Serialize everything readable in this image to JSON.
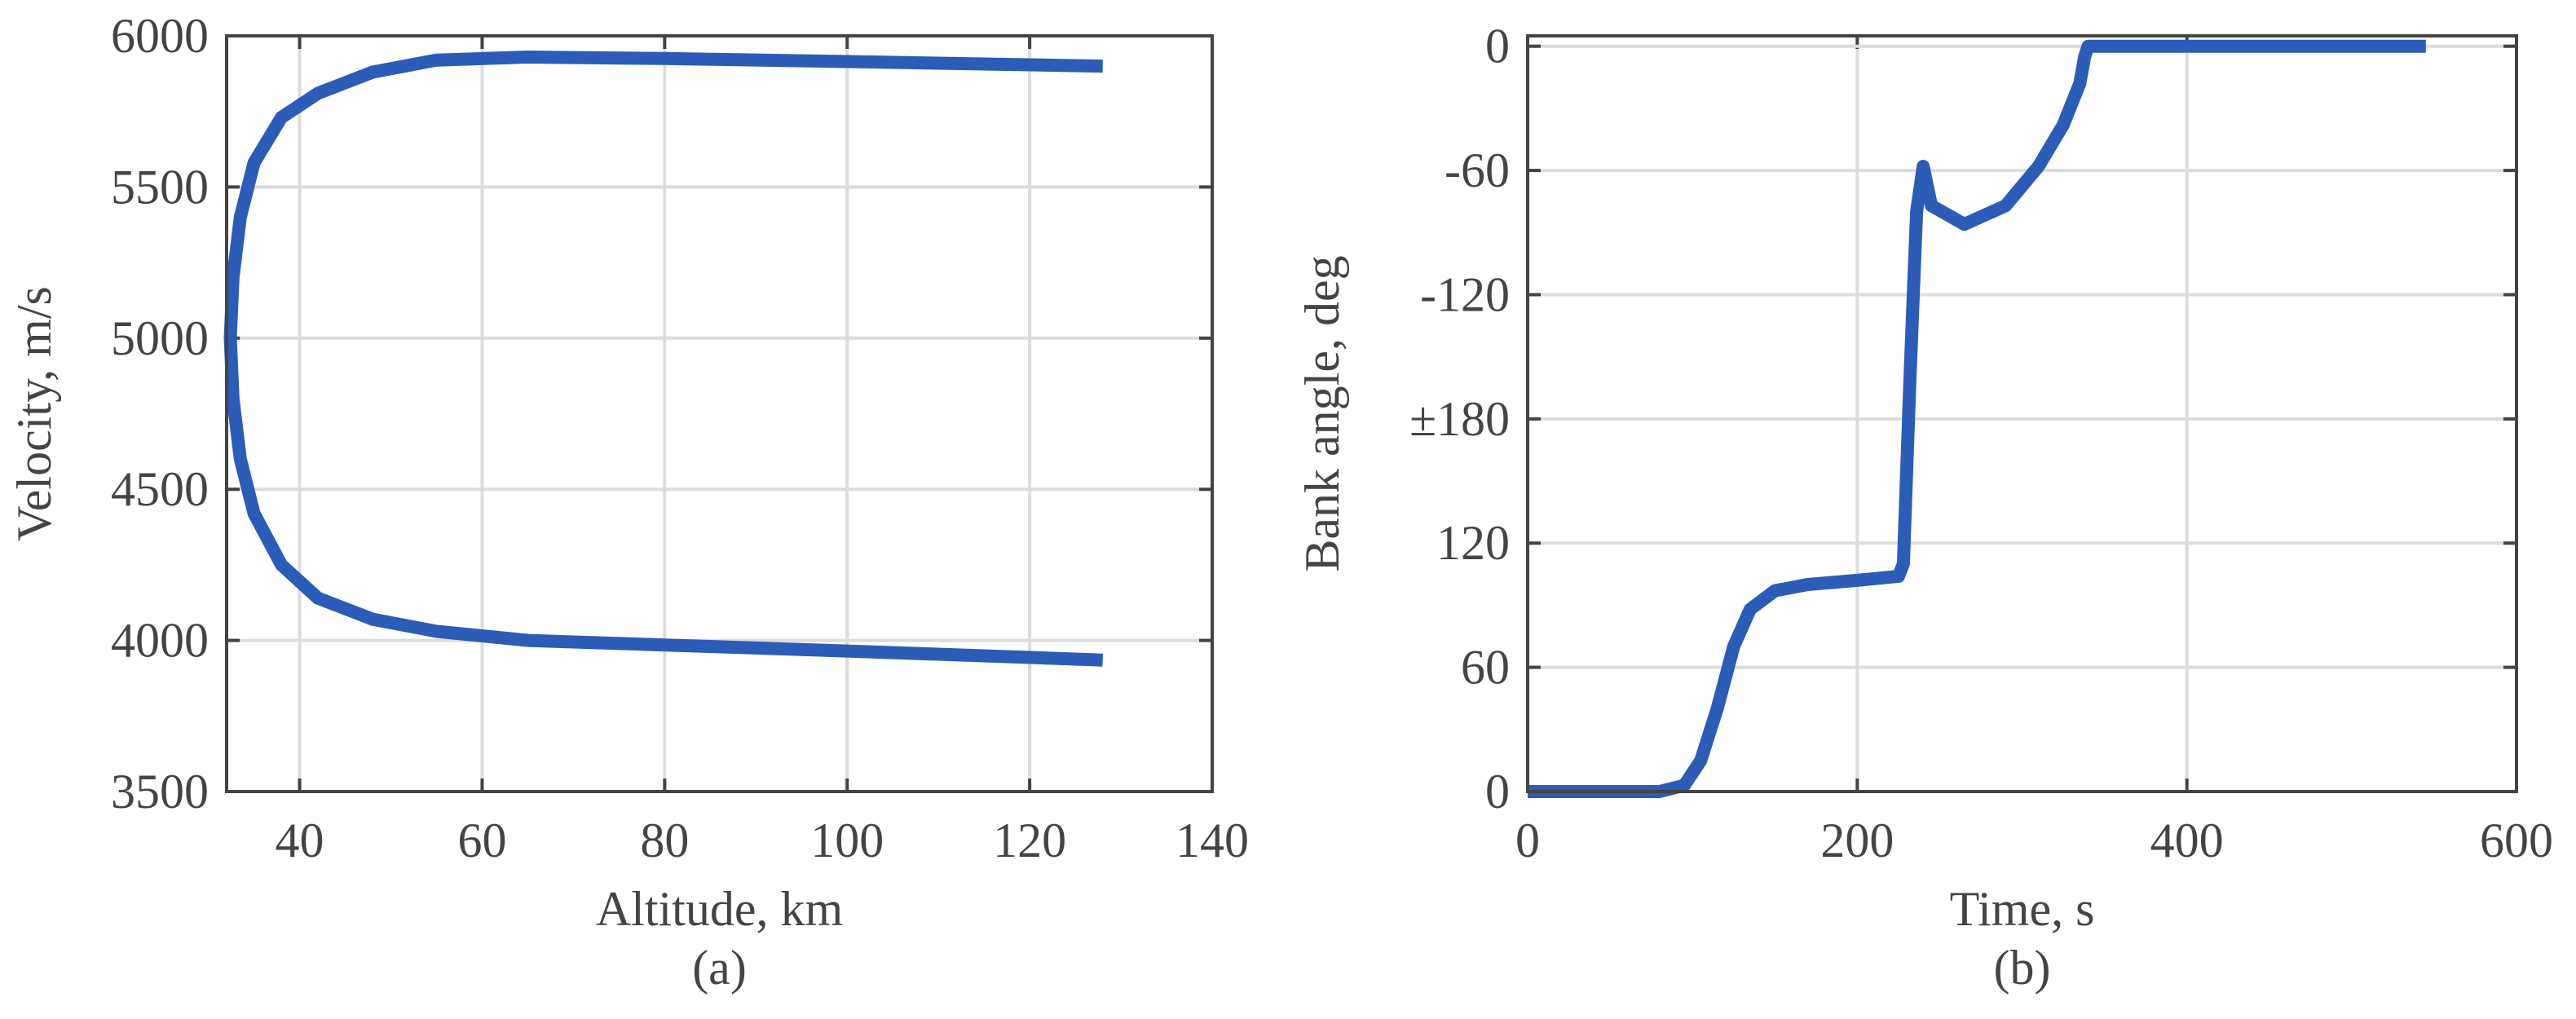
{
  "chart_data": [
    {
      "type": "line",
      "caption": "(a)",
      "x_label": "Altitude, km",
      "y_label": "Velocity, m/s",
      "xlim": [
        32,
        140
      ],
      "xticks": [
        40,
        60,
        80,
        100,
        120,
        140
      ],
      "ylim": [
        3500,
        6000
      ],
      "yticks": [
        3500,
        4000,
        4500,
        5000,
        5500,
        6000
      ],
      "grid": true,
      "series": [
        {
          "color": "#2b5cb8",
          "x": [
            128,
            100,
            80,
            65,
            55,
            48,
            42,
            38,
            35,
            33.5,
            32.7,
            32.4,
            32.7,
            33.5,
            35,
            38,
            42,
            48,
            55,
            65,
            80,
            100,
            128
          ],
          "values": [
            5900,
            5915,
            5925,
            5930,
            5920,
            5880,
            5810,
            5730,
            5580,
            5400,
            5200,
            5000,
            4800,
            4600,
            4420,
            4250,
            4140,
            4070,
            4030,
            4000,
            3985,
            3965,
            3935
          ]
        }
      ]
    },
    {
      "type": "line",
      "caption": "(b)",
      "x_label": "Time, s",
      "y_label": "Bank angle, deg",
      "xlim": [
        0,
        600
      ],
      "xticks": [
        0,
        200,
        400,
        600
      ],
      "ylim": [
        0,
        365
      ],
      "yticks": [
        0,
        60,
        120,
        {
          "value": 180,
          "label": "±180"
        },
        {
          "value": 240,
          "label": "-120"
        },
        {
          "value": 300,
          "label": "-60"
        },
        {
          "value": 360,
          "label": "0"
        }
      ],
      "grid": true,
      "series": [
        {
          "color": "#2b5cb8",
          "x": [
            0,
            80,
            95,
            105,
            115,
            125,
            135,
            150,
            170,
            200,
            225,
            228,
            232,
            236,
            240,
            245,
            265,
            290,
            310,
            325,
            335,
            338,
            340,
            545
          ],
          "values": [
            0,
            0,
            3,
            15,
            40,
            70,
            88,
            97,
            100,
            102,
            104,
            110,
            200,
            280,
            302,
            283,
            274,
            283,
            302,
            322,
            342,
            355,
            360,
            360
          ]
        }
      ]
    }
  ]
}
